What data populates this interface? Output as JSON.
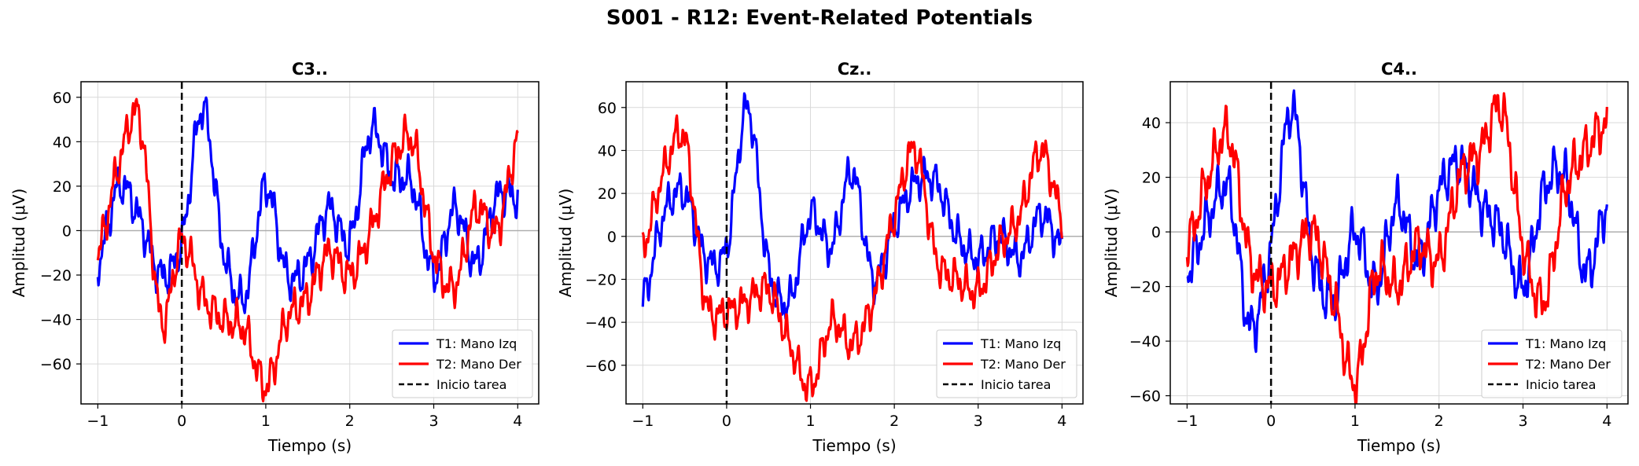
{
  "figure": {
    "title": "S001 - R12: Event-Related Potentials"
  },
  "colors": {
    "t1": "#0000ff",
    "t2": "#ff0000",
    "onset": "#000000",
    "zero": "#999999",
    "grid": "#d9d9d9"
  },
  "chart_data": [
    {
      "type": "line",
      "title": "C3..",
      "xlabel": "Tiempo (s)",
      "ylabel": "Amplitud (μV)",
      "xlim": [
        -1.2,
        4.25
      ],
      "ylim": [
        -78,
        67
      ],
      "xticks": [
        -1,
        0,
        1,
        2,
        3,
        4
      ],
      "yticks": [
        -60,
        -40,
        -20,
        0,
        20,
        40,
        60
      ],
      "grid": true,
      "legend_position": "lower right",
      "legend": [
        "T1: Mano Izq",
        "T2: Mano Der",
        "Inicio tarea"
      ],
      "vline": {
        "x": 0,
        "label": "Inicio tarea"
      },
      "x": [
        -1,
        -0.75,
        -0.5,
        -0.25,
        0,
        0.25,
        0.5,
        0.75,
        1,
        1.25,
        1.5,
        1.75,
        2,
        2.25,
        2.5,
        2.75,
        3,
        3.25,
        3.5,
        3.75,
        4
      ],
      "series": [
        {
          "name": "T1: Mano Izq",
          "values": [
            -15,
            20,
            5,
            -20,
            -5,
            55,
            -10,
            -30,
            20,
            -20,
            -15,
            10,
            -5,
            45,
            25,
            20,
            -20,
            10,
            -15,
            15,
            15
          ]
        },
        {
          "name": "T2: Mano Der",
          "values": [
            -10,
            30,
            50,
            -40,
            -5,
            -30,
            -40,
            -45,
            -70,
            -40,
            -30,
            -10,
            -20,
            0,
            30,
            40,
            -10,
            -25,
            10,
            0,
            40
          ]
        }
      ]
    },
    {
      "type": "line",
      "title": "Cz..",
      "xlabel": "Tiempo (s)",
      "ylabel": "Amplitud (μV)",
      "xlim": [
        -1.2,
        4.25
      ],
      "ylim": [
        -78,
        72
      ],
      "xticks": [
        -1,
        0,
        1,
        2,
        3,
        4
      ],
      "yticks": [
        -60,
        -40,
        -20,
        0,
        20,
        40,
        60
      ],
      "grid": true,
      "legend_position": "lower right",
      "legend": [
        "T1: Mano Izq",
        "T2: Mano Der",
        "Inicio tarea"
      ],
      "vline": {
        "x": 0,
        "label": "Inicio tarea"
      },
      "x": [
        -1,
        -0.75,
        -0.5,
        -0.25,
        0,
        0.25,
        0.5,
        0.75,
        1,
        1.25,
        1.5,
        1.75,
        2,
        2.25,
        2.5,
        2.75,
        3,
        3.25,
        3.5,
        3.75,
        4
      ],
      "series": [
        {
          "name": "T1: Mano Izq",
          "values": [
            -30,
            10,
            20,
            -10,
            -5,
            60,
            -15,
            -30,
            10,
            -5,
            30,
            -20,
            5,
            25,
            25,
            0,
            -10,
            0,
            -10,
            10,
            -5
          ]
        },
        {
          "name": "T2: Mano Der",
          "values": [
            -5,
            30,
            45,
            -30,
            -35,
            -30,
            -25,
            -50,
            -70,
            -40,
            -50,
            -30,
            10,
            40,
            -10,
            -20,
            -25,
            -5,
            10,
            40,
            10
          ]
        }
      ]
    },
    {
      "type": "line",
      "title": "C4..",
      "xlabel": "Tiempo (s)",
      "ylabel": "Amplitud (μV)",
      "xlim": [
        -1.2,
        4.25
      ],
      "ylim": [
        -63,
        55
      ],
      "xticks": [
        -1,
        0,
        1,
        2,
        3,
        4
      ],
      "yticks": [
        -60,
        -40,
        -20,
        0,
        20,
        40
      ],
      "grid": true,
      "legend_position": "lower right",
      "legend": [
        "T1: Mano Izq",
        "T2: Mano Der",
        "Inicio tarea"
      ],
      "vline": {
        "x": 0,
        "label": "Inicio tarea"
      },
      "x": [
        -1,
        -0.75,
        -0.5,
        -0.25,
        0,
        0.25,
        0.5,
        0.75,
        1,
        1.25,
        1.5,
        1.75,
        2,
        2.25,
        2.5,
        2.75,
        3,
        3.25,
        3.5,
        3.75,
        4
      ],
      "series": [
        {
          "name": "T1: Mano Izq",
          "values": [
            -15,
            5,
            15,
            -35,
            -5,
            45,
            -10,
            -25,
            0,
            -20,
            10,
            -10,
            15,
            25,
            10,
            0,
            -20,
            15,
            20,
            -15,
            10
          ]
        },
        {
          "name": "T2: Mano Der",
          "values": [
            -5,
            20,
            35,
            -10,
            -20,
            -10,
            0,
            -25,
            -55,
            -15,
            -20,
            -5,
            -10,
            20,
            30,
            45,
            -5,
            -25,
            15,
            30,
            40
          ]
        }
      ]
    }
  ]
}
